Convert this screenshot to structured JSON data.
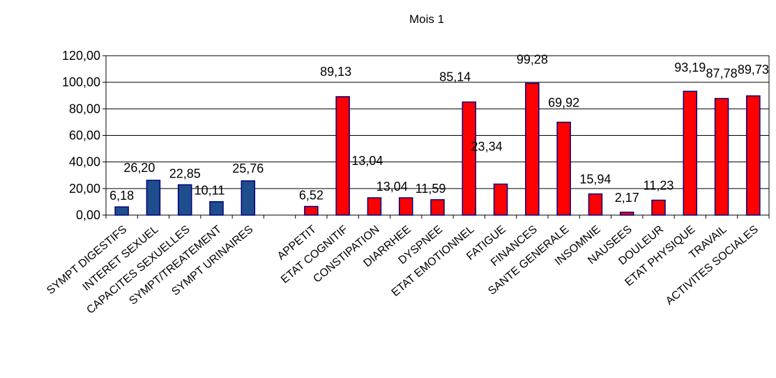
{
  "chart_data": {
    "type": "bar",
    "title": "Mois 1",
    "xlabel": "",
    "ylabel": "",
    "ylim": [
      0,
      120
    ],
    "yticks": [
      "0,00",
      "20,00",
      "40,00",
      "60,00",
      "80,00",
      "100,00",
      "120,00"
    ],
    "grid": "horizontal",
    "legend": "none",
    "categories": [
      "SYMPT  DIGESTIFS",
      "INTERET SEXUEL",
      "CAPACITES SEXUELLES",
      "SYMPT/TREATEMENT",
      "SYMPT URINAIRES",
      "",
      "APPETIT",
      "ETAT COGNITIF",
      "CONSTIPATION",
      "DIARRHEE",
      "DYSPNEE",
      "ETAT EMOTIONNEL",
      "FATIGUE",
      "FINANCES",
      "SANTE GENERALE",
      "INSOMNIE",
      "NAUSEES",
      "DOULEUR",
      "ETAT PHYSIQUE",
      "TRAVAIL",
      "ACTIVITES SOCIALES"
    ],
    "values": [
      6.18,
      26.2,
      22.85,
      10.11,
      25.76,
      null,
      6.52,
      89.13,
      13.04,
      13.04,
      11.59,
      85.14,
      23.34,
      99.28,
      69.92,
      15.94,
      2.17,
      11.23,
      93.19,
      87.78,
      89.73
    ],
    "value_labels": [
      "6,18",
      "26,20",
      "22,85",
      "10,11",
      "25,76",
      "",
      "6,52",
      "89,13",
      "13,04",
      "13,04",
      "11,59",
      "85,14",
      "23,34",
      "99,28",
      "69,92",
      "15,94",
      "2,17",
      "11,23",
      "93,19",
      "87,78",
      "89,73"
    ],
    "colors": [
      "#1f4e8c",
      "#1f4e8c",
      "#1f4e8c",
      "#1f4e8c",
      "#1f4e8c",
      null,
      "#ff0000",
      "#ff0000",
      "#ff0000",
      "#ff0000",
      "#ff0000",
      "#ff0000",
      "#ff0000",
      "#ff0000",
      "#ff0000",
      "#ff0000",
      "#ff0000",
      "#ff0000",
      "#ff0000",
      "#ff0000",
      "#ff0000"
    ],
    "bar_outline_color": "#000080"
  }
}
